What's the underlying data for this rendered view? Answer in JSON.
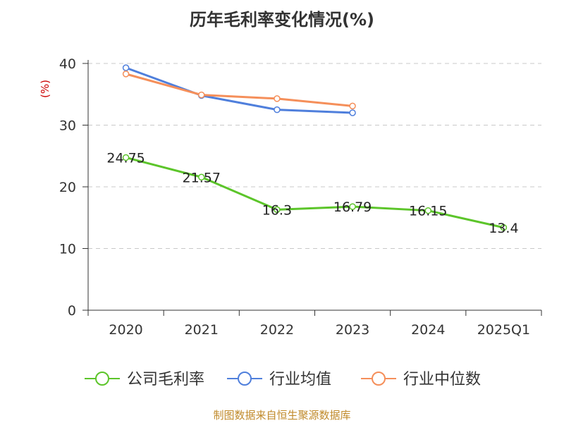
{
  "colors": {
    "company": "#5cc52a",
    "industry_avg": "#4f7fdc",
    "industry_median": "#f58f5a",
    "unit_label": "#cc0000",
    "source": "#c08a2a"
  },
  "chart_data": {
    "type": "line",
    "title": "历年毛利率变化情况(%)",
    "ylabel": "(%)",
    "xlabel": "",
    "ylim": [
      0,
      40
    ],
    "yticks": [
      0,
      10,
      20,
      30,
      40
    ],
    "ytick_labels": [
      "0",
      "10",
      "20",
      "30",
      "40"
    ],
    "grid": true,
    "legend_position": "bottom",
    "categories": [
      "2020",
      "2021",
      "2022",
      "2023",
      "2024",
      "2025Q1"
    ],
    "series": [
      {
        "name": "公司毛利率",
        "color_key": "company",
        "values": [
          24.75,
          21.57,
          16.3,
          16.79,
          16.15,
          13.4
        ],
        "labels": [
          "24.75",
          "21.57",
          "16.3",
          "16.79",
          "16.15",
          "13.4"
        ]
      },
      {
        "name": "行业均值",
        "color_key": "industry_avg",
        "values": [
          39.3,
          34.8,
          32.5,
          32.0,
          null,
          null
        ]
      },
      {
        "name": "行业中位数",
        "color_key": "industry_median",
        "values": [
          38.3,
          34.9,
          34.3,
          33.1,
          null,
          null
        ]
      }
    ]
  },
  "source_text": "制图数据来自恒生聚源数据库"
}
